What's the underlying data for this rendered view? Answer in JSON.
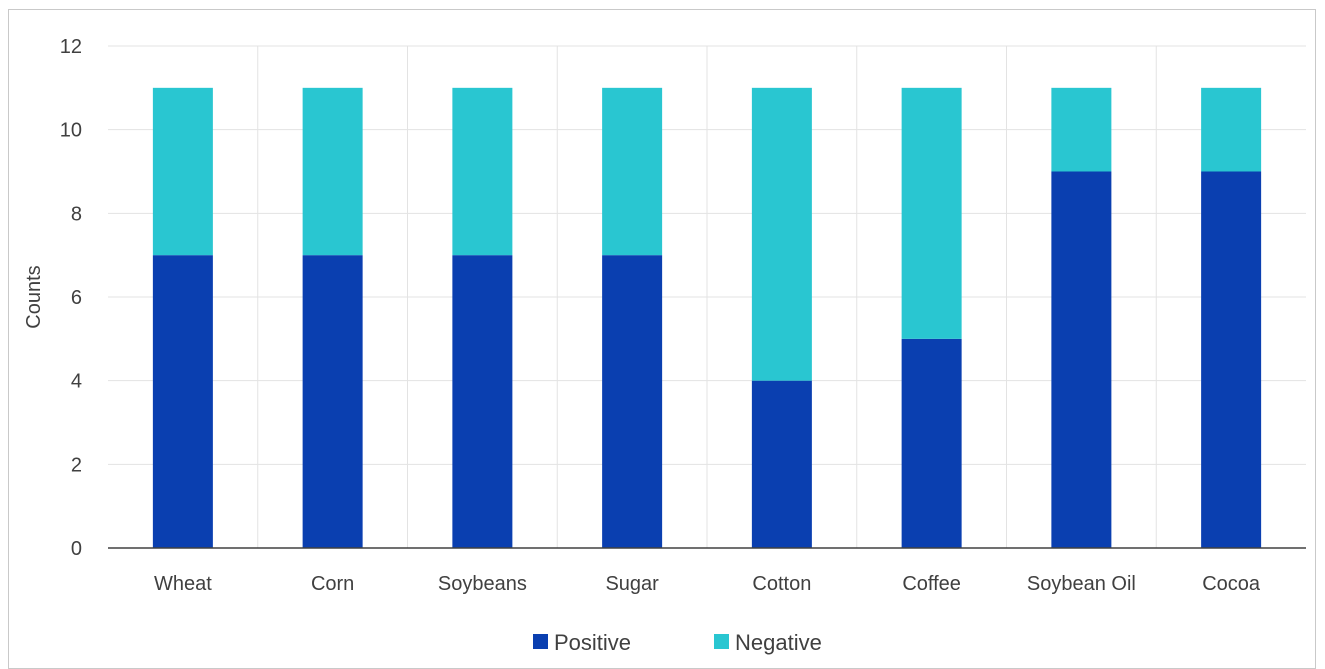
{
  "chart_data": {
    "type": "bar",
    "stacked": true,
    "categories": [
      "Wheat",
      "Corn",
      "Soybeans",
      "Sugar",
      "Cotton",
      "Coffee",
      "Soybean Oil",
      "Cocoa"
    ],
    "series": [
      {
        "name": "Positive",
        "color": "#0a3fb0",
        "values": [
          7,
          7,
          7,
          7,
          4,
          5,
          9,
          9
        ]
      },
      {
        "name": "Negative",
        "color": "#29c6d1",
        "values": [
          4,
          4,
          4,
          4,
          7,
          6,
          2,
          2
        ]
      }
    ],
    "title": "",
    "xlabel": "",
    "ylabel": "Counts",
    "ylim": [
      0,
      12
    ],
    "yticks": [
      0,
      2,
      4,
      6,
      8,
      10,
      12
    ],
    "grid": true,
    "legend_position": "bottom"
  }
}
